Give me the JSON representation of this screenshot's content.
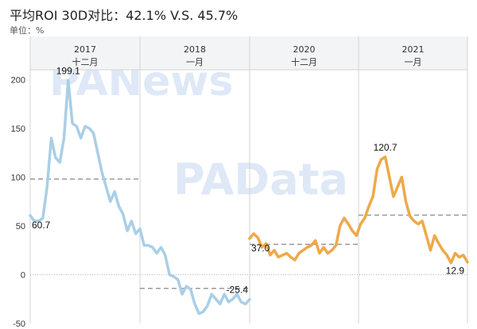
{
  "header": {
    "title": "平均ROI 30D对比：42.1% V.S. 45.7%",
    "unit": "单位：%"
  },
  "watermarks": [
    "PANews",
    "PAData"
  ],
  "colors": {
    "series_2017": "#a9cfe6",
    "series_2020": "#eea94a",
    "avg_line": "#9a9a9a",
    "divider": "#d3d3d3",
    "header_bg": "#f3f4f6"
  },
  "chart_data": {
    "type": "line",
    "title": "平均ROI 30D对比：42.1% V.S. 45.7%",
    "ylabel": "单位：%",
    "ylim": [
      -50,
      210
    ],
    "yticks": [
      -50,
      0,
      50,
      100,
      150,
      200
    ],
    "grid": false,
    "panels": [
      {
        "year": "2017",
        "month": "十二月"
      },
      {
        "year": "2018",
        "month": "一月"
      },
      {
        "year": "2020",
        "month": "十二月"
      },
      {
        "year": "2021",
        "month": "一月"
      }
    ],
    "series": [
      {
        "average": 42.1,
        "values": [
          60.7,
          55,
          55,
          58,
          90,
          140,
          120,
          115,
          140,
          199.1,
          155,
          152,
          140,
          152,
          150,
          145,
          125,
          105,
          90,
          75,
          85,
          70,
          62,
          45,
          55,
          42,
          47,
          30,
          30,
          28,
          22,
          28,
          20,
          0,
          -2,
          -5,
          -20,
          -12,
          -15,
          -30,
          -40,
          -38,
          -32,
          -20,
          -25,
          -30,
          -20,
          -28,
          -25,
          -20,
          -28,
          -30,
          -25.4
        ],
        "labels": [
          {
            "index": 0,
            "text": "60.7"
          },
          {
            "index": 9,
            "text": "199.1"
          },
          {
            "index": 52,
            "text": "-25.4"
          }
        ]
      },
      {
        "average": 45.7,
        "values": [
          37.0,
          42,
          38,
          28,
          32,
          20,
          25,
          18,
          20,
          22,
          18,
          15,
          22,
          25,
          28,
          30,
          35,
          22,
          28,
          22,
          25,
          30,
          50,
          58,
          52,
          45,
          40,
          52,
          58,
          70,
          80,
          108,
          118,
          120.7,
          100,
          80,
          90,
          100,
          75,
          60,
          55,
          52,
          55,
          40,
          25,
          40,
          32,
          25,
          20,
          12,
          22,
          18,
          20,
          12.9
        ],
        "labels": [
          {
            "index": 0,
            "text": "37.0"
          },
          {
            "index": 33,
            "text": "120.7"
          },
          {
            "index": 53,
            "text": "12.9"
          }
        ]
      }
    ]
  }
}
